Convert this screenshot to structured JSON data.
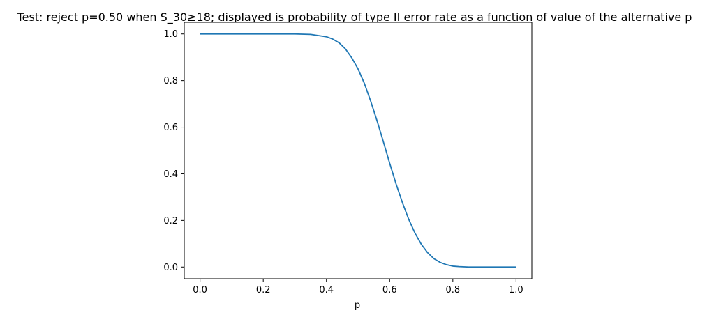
{
  "chart_data": {
    "type": "line",
    "title": "Test: reject p=0.50 when S_30≥18; displayed is probability of type II error rate as a function of value of the alternative p",
    "xlabel": "p",
    "ylabel": "",
    "xlim": [
      -0.05,
      1.05
    ],
    "ylim": [
      -0.05,
      1.05
    ],
    "x_ticks": [
      "0.0",
      "0.2",
      "0.4",
      "0.6",
      "0.8",
      "1.0"
    ],
    "y_ticks": [
      "0.0",
      "0.2",
      "0.4",
      "0.6",
      "0.8",
      "1.0"
    ],
    "grid": false,
    "legend": "none",
    "series": [
      {
        "color": "#1f77b4",
        "x": [
          0.0,
          0.05,
          0.1,
          0.15,
          0.2,
          0.25,
          0.3,
          0.35,
          0.4,
          0.42,
          0.44,
          0.46,
          0.48,
          0.5,
          0.52,
          0.54,
          0.56,
          0.58,
          0.6,
          0.62,
          0.64,
          0.66,
          0.68,
          0.7,
          0.72,
          0.74,
          0.76,
          0.78,
          0.8,
          0.82,
          0.85,
          0.9,
          0.95,
          1.0
        ],
        "y": [
          1.0,
          1.0,
          1.0,
          1.0,
          1.0,
          1.0,
          1.0,
          0.998,
          0.988,
          0.978,
          0.962,
          0.936,
          0.898,
          0.85,
          0.788,
          0.712,
          0.628,
          0.538,
          0.446,
          0.358,
          0.278,
          0.206,
          0.146,
          0.098,
          0.062,
          0.036,
          0.02,
          0.01,
          0.004,
          0.002,
          0.0,
          0.0,
          0.0,
          0.0
        ]
      }
    ]
  }
}
